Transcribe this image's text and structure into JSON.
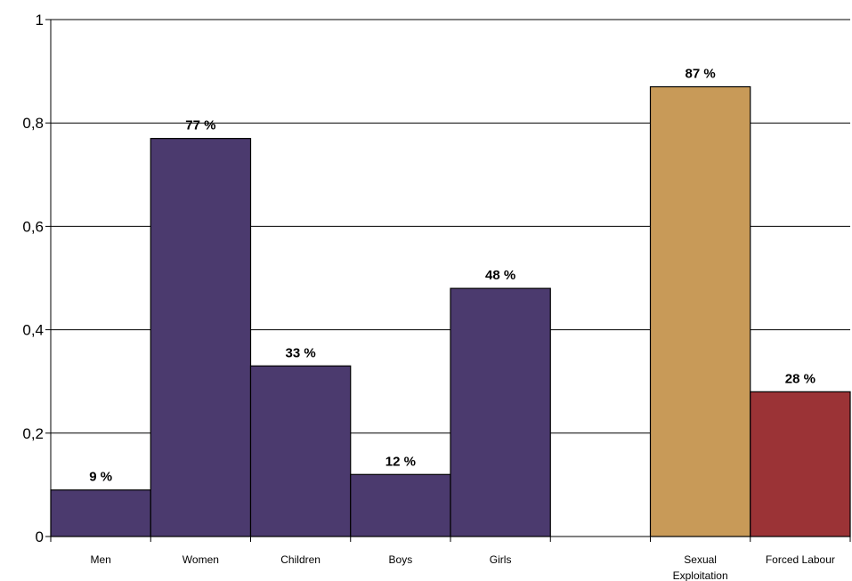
{
  "chart_data": {
    "type": "bar",
    "title": "",
    "xlabel": "",
    "ylabel": "",
    "ylim": [
      0,
      1
    ],
    "yticks": [
      "0",
      "0,2",
      "0,4",
      "0,6",
      "0,8",
      "1"
    ],
    "grid": true,
    "bars": [
      {
        "label": [
          "Men"
        ],
        "value": 0.09,
        "value_label": "9 %",
        "color": "#4b3a6e"
      },
      {
        "label": [
          "Women"
        ],
        "value": 0.77,
        "value_label": "77 %",
        "color": "#4b3a6e"
      },
      {
        "label": [
          "Children"
        ],
        "value": 0.33,
        "value_label": "33 %",
        "color": "#4b3a6e"
      },
      {
        "label": [
          "Boys"
        ],
        "value": 0.12,
        "value_label": "12 %",
        "color": "#4b3a6e"
      },
      {
        "label": [
          "Girls"
        ],
        "value": 0.48,
        "value_label": "48 %",
        "color": "#4b3a6e"
      },
      {
        "label": [
          ""
        ],
        "value": 0,
        "value_label": "",
        "color": "#4b3a6e"
      },
      {
        "label": [
          "Sexual",
          "Exploitation"
        ],
        "value": 0.87,
        "value_label": "87 %",
        "color": "#c89a58"
      },
      {
        "label": [
          "Forced Labour"
        ],
        "value": 0.28,
        "value_label": "28 %",
        "color": "#9b3336"
      }
    ]
  }
}
